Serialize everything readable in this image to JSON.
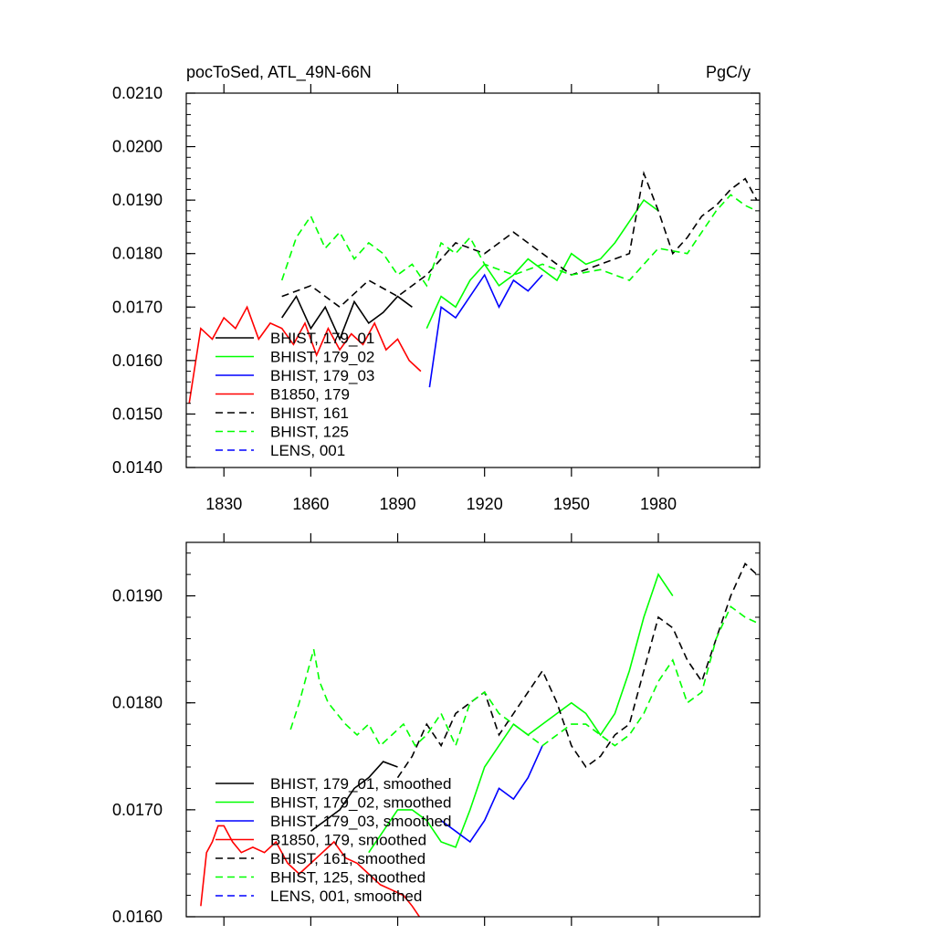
{
  "chart_data": [
    {
      "type": "line",
      "title": "pocToSed, ATL_49N-66N",
      "units": "PgC/y",
      "xlim": [
        1817,
        2015
      ],
      "ylim": [
        0.014,
        0.021
      ],
      "x_ticks": [
        1830,
        1860,
        1890,
        1920,
        1950,
        1980
      ],
      "x_tick_labels": [
        "1830",
        "1860",
        "1890",
        "1920",
        "1950",
        "1980"
      ],
      "y_ticks": [
        0.014,
        0.015,
        0.016,
        0.017,
        0.018,
        0.019,
        0.02,
        0.021
      ],
      "y_tick_labels": [
        "0.0140",
        "0.0150",
        "0.0160",
        "0.0170",
        "0.0180",
        "0.0190",
        "0.0200",
        "0.0210"
      ],
      "legend_position": "lower-left",
      "legend": [
        "BHIST, 179_01",
        "BHIST, 179_02",
        "BHIST, 179_03",
        "B1850, 179",
        "BHIST, 161",
        "BHIST, 125",
        "LENS, 001"
      ],
      "series": [
        {
          "name": "BHIST, 179_01",
          "color": "#000000",
          "dash": "solid",
          "x": [
            1850,
            1855,
            1860,
            1865,
            1870,
            1875,
            1880,
            1885,
            1890,
            1895
          ],
          "y": [
            0.0168,
            0.0172,
            0.0166,
            0.017,
            0.0164,
            0.0171,
            0.0167,
            0.0169,
            0.0172,
            0.017
          ]
        },
        {
          "name": "BHIST, 179_02",
          "color": "#00ff00",
          "dash": "solid",
          "x": [
            1900,
            1905,
            1910,
            1915,
            1920,
            1925,
            1930,
            1935,
            1940,
            1945,
            1950,
            1955,
            1960,
            1965,
            1970,
            1975,
            1980
          ],
          "y": [
            0.0166,
            0.0172,
            0.017,
            0.0175,
            0.0178,
            0.0174,
            0.0176,
            0.0179,
            0.0177,
            0.0175,
            0.018,
            0.0178,
            0.0179,
            0.0182,
            0.0186,
            0.019,
            0.0188
          ]
        },
        {
          "name": "BHIST, 179_03",
          "color": "#0000ff",
          "dash": "solid",
          "x": [
            1901,
            1905,
            1910,
            1915,
            1920,
            1925,
            1930,
            1935,
            1940
          ],
          "y": [
            0.0155,
            0.017,
            0.0168,
            0.0172,
            0.0176,
            0.017,
            0.0175,
            0.0173,
            0.0176
          ]
        },
        {
          "name": "B1850, 179",
          "color": "#ff0000",
          "dash": "solid",
          "x": [
            1818,
            1822,
            1826,
            1830,
            1834,
            1838,
            1842,
            1846,
            1850,
            1854,
            1858,
            1862,
            1866,
            1870,
            1874,
            1878,
            1882,
            1886,
            1890,
            1894,
            1898
          ],
          "y": [
            0.0152,
            0.0166,
            0.0164,
            0.0168,
            0.0166,
            0.017,
            0.0164,
            0.0167,
            0.0166,
            0.0163,
            0.0167,
            0.0161,
            0.0166,
            0.0162,
            0.0165,
            0.0163,
            0.0167,
            0.0162,
            0.0164,
            0.016,
            0.0158
          ]
        },
        {
          "name": "BHIST, 161",
          "color": "#000000",
          "dash": "dashed",
          "x": [
            1850,
            1860,
            1870,
            1880,
            1890,
            1900,
            1910,
            1920,
            1930,
            1940,
            1950,
            1960,
            1970,
            1975,
            1980,
            1985,
            1990,
            1995,
            2000,
            2005,
            2010,
            2014
          ],
          "y": [
            0.0172,
            0.0174,
            0.017,
            0.0175,
            0.0172,
            0.0176,
            0.0182,
            0.018,
            0.0184,
            0.018,
            0.0176,
            0.0178,
            0.018,
            0.0195,
            0.0188,
            0.018,
            0.0183,
            0.0187,
            0.0189,
            0.0192,
            0.0194,
            0.019
          ]
        },
        {
          "name": "BHIST, 125",
          "color": "#00ff00",
          "dash": "dashed",
          "x": [
            1850,
            1855,
            1860,
            1865,
            1870,
            1875,
            1880,
            1885,
            1890,
            1895,
            1900,
            1905,
            1910,
            1915,
            1920,
            1930,
            1940,
            1950,
            1960,
            1970,
            1980,
            1990,
            2000,
            2005,
            2010,
            2014
          ],
          "y": [
            0.0175,
            0.0183,
            0.0187,
            0.0181,
            0.0184,
            0.0179,
            0.0182,
            0.018,
            0.0176,
            0.0178,
            0.0174,
            0.0182,
            0.018,
            0.0183,
            0.0178,
            0.0176,
            0.0178,
            0.0176,
            0.0177,
            0.0175,
            0.0181,
            0.018,
            0.0188,
            0.0191,
            0.0189,
            0.0188
          ]
        },
        {
          "name": "LENS, 001",
          "color": "#0000ff",
          "dash": "dashed",
          "x": [],
          "y": []
        }
      ]
    },
    {
      "type": "line",
      "xlim": [
        1817,
        2015
      ],
      "ylim": [
        0.016,
        0.0195
      ],
      "y_ticks": [
        0.016,
        0.017,
        0.018,
        0.019
      ],
      "y_tick_labels": [
        "0.0160",
        "0.0170",
        "0.0180",
        "0.0190"
      ],
      "x_ticks": [
        1830,
        1860,
        1890,
        1920,
        1950,
        1980
      ],
      "legend_position": "lower-left",
      "legend": [
        "BHIST, 179_01, smoothed",
        "BHIST, 179_02, smoothed",
        "BHIST, 179_03, smoothed",
        "B1850, 179, smoothed",
        "BHIST, 161, smoothed",
        "BHIST, 125, smoothed",
        "LENS, 001, smoothed"
      ],
      "series": [
        {
          "name": "BHIST, 179_01, smoothed",
          "color": "#000000",
          "dash": "solid",
          "x": [
            1860,
            1865,
            1870,
            1875,
            1880,
            1885,
            1890
          ],
          "y": [
            0.0168,
            0.0169,
            0.017,
            0.0172,
            0.0173,
            0.01745,
            0.0174
          ]
        },
        {
          "name": "BHIST, 179_02, smoothed",
          "color": "#00ff00",
          "dash": "solid",
          "x": [
            1880,
            1885,
            1890,
            1895,
            1900,
            1905,
            1910,
            1915,
            1920,
            1925,
            1930,
            1935,
            1940,
            1945,
            1950,
            1955,
            1960,
            1965,
            1970,
            1975,
            1980,
            1985
          ],
          "y": [
            0.0166,
            0.0168,
            0.017,
            0.017,
            0.0169,
            0.0167,
            0.01665,
            0.017,
            0.0174,
            0.0176,
            0.0178,
            0.0177,
            0.0178,
            0.0179,
            0.018,
            0.0179,
            0.0177,
            0.0179,
            0.0183,
            0.0188,
            0.0192,
            0.019
          ]
        },
        {
          "name": "BHIST, 179_03, smoothed",
          "color": "#0000ff",
          "dash": "solid",
          "x": [
            1905,
            1910,
            1915,
            1920,
            1925,
            1930,
            1935,
            1940
          ],
          "y": [
            0.0169,
            0.0168,
            0.0167,
            0.0169,
            0.0172,
            0.0171,
            0.0173,
            0.0176
          ]
        },
        {
          "name": "B1850, 179, smoothed",
          "color": "#ff0000",
          "dash": "solid",
          "x": [
            1822,
            1824,
            1826,
            1828,
            1830,
            1833,
            1836,
            1840,
            1844,
            1848,
            1852,
            1856,
            1860,
            1864,
            1868,
            1872,
            1876,
            1880,
            1884,
            1888,
            1892,
            1895,
            1898
          ],
          "y": [
            0.0161,
            0.0166,
            0.0167,
            0.01685,
            0.01685,
            0.0167,
            0.0166,
            0.01665,
            0.0166,
            0.0167,
            0.0165,
            0.0164,
            0.0165,
            0.0166,
            0.0167,
            0.01655,
            0.0165,
            0.0164,
            0.0163,
            0.01625,
            0.0162,
            0.0161,
            0.01598
          ]
        },
        {
          "name": "BHIST, 161, smoothed",
          "color": "#000000",
          "dash": "dashed",
          "x": [
            1890,
            1895,
            1900,
            1905,
            1910,
            1915,
            1920,
            1925,
            1930,
            1935,
            1940,
            1945,
            1950,
            1955,
            1960,
            1965,
            1970,
            1975,
            1980,
            1985,
            1990,
            1995,
            2000,
            2005,
            2010,
            2014
          ],
          "y": [
            0.0173,
            0.0175,
            0.0178,
            0.0176,
            0.0179,
            0.018,
            0.0181,
            0.0177,
            0.0179,
            0.0181,
            0.0183,
            0.018,
            0.0176,
            0.0174,
            0.0175,
            0.0177,
            0.0178,
            0.0183,
            0.0188,
            0.0187,
            0.0184,
            0.0182,
            0.0186,
            0.019,
            0.0193,
            0.0192
          ]
        },
        {
          "name": "BHIST, 125, smoothed",
          "color": "#00ff00",
          "dash": "dashed",
          "x": [
            1853,
            1856,
            1859,
            1861,
            1863,
            1866,
            1869,
            1872,
            1876,
            1880,
            1884,
            1888,
            1892,
            1896,
            1900,
            1905,
            1910,
            1915,
            1920,
            1925,
            1930,
            1935,
            1940,
            1945,
            1950,
            1955,
            1960,
            1965,
            1970,
            1975,
            1980,
            1985,
            1990,
            1995,
            2000,
            2005,
            2010,
            2014
          ],
          "y": [
            0.01775,
            0.018,
            0.0183,
            0.0185,
            0.0182,
            0.018,
            0.0179,
            0.0178,
            0.0177,
            0.0178,
            0.0176,
            0.0177,
            0.0178,
            0.0176,
            0.0177,
            0.0179,
            0.0176,
            0.018,
            0.0181,
            0.0179,
            0.0178,
            0.0177,
            0.0176,
            0.0177,
            0.0178,
            0.0178,
            0.0177,
            0.0176,
            0.0177,
            0.0179,
            0.0182,
            0.0184,
            0.018,
            0.0181,
            0.0186,
            0.0189,
            0.0188,
            0.01875
          ]
        },
        {
          "name": "LENS, 001, smoothed",
          "color": "#0000ff",
          "dash": "dashed",
          "x": [],
          "y": []
        }
      ]
    }
  ]
}
